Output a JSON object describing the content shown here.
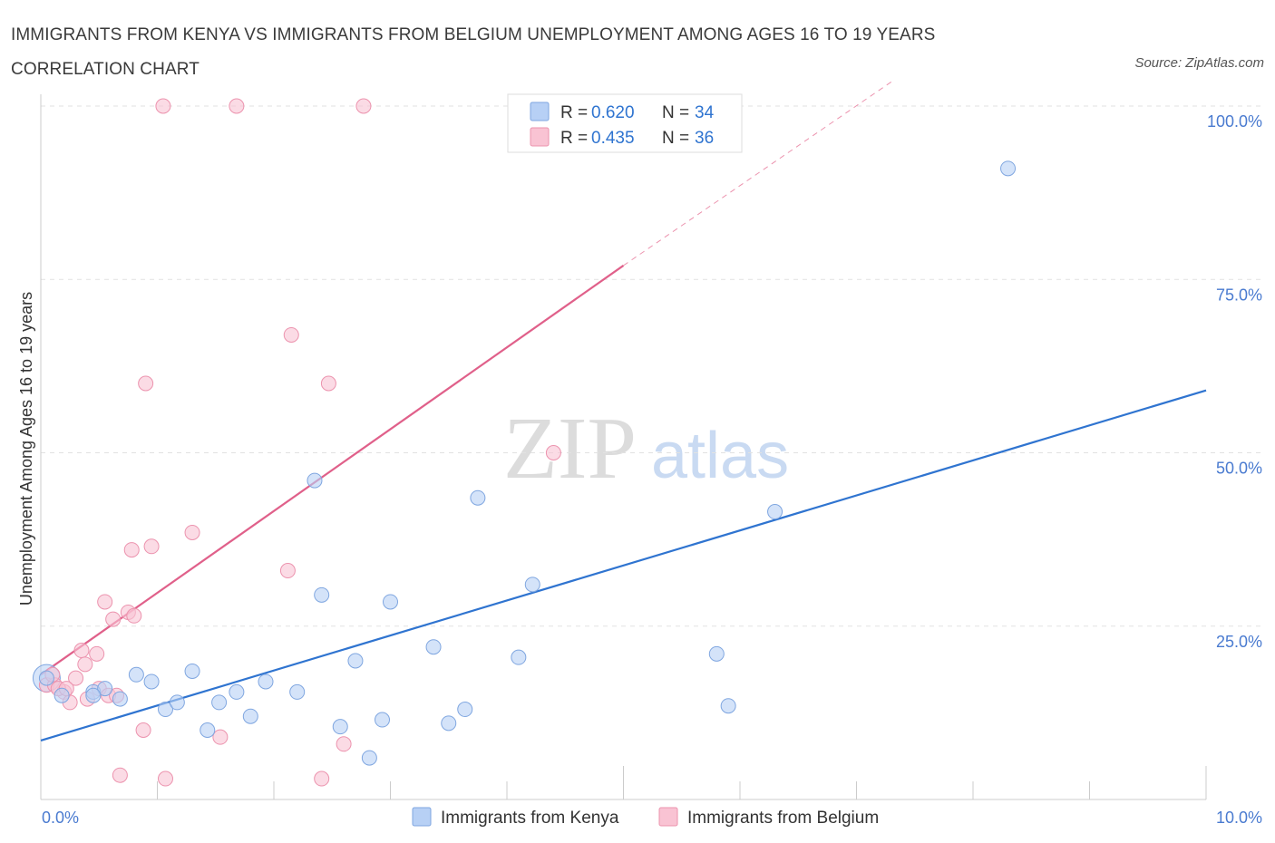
{
  "header": {
    "title": "IMMIGRANTS FROM KENYA VS IMMIGRANTS FROM BELGIUM UNEMPLOYMENT AMONG AGES 16 TO 19 YEARS CORRELATION CHART",
    "source": "Source: ZipAtlas.com"
  },
  "watermark": {
    "zip": "ZIP",
    "atlas": "atlas"
  },
  "colors": {
    "kenya_fill": "#b7d0f5",
    "kenya_stroke": "#7fa6e0",
    "kenya_line": "#2f74d0",
    "belgium_fill": "#f9c3d3",
    "belgium_stroke": "#ec93ae",
    "belgium_line": "#e0608a",
    "tick_blue": "#4a7bd0"
  },
  "chart_data": {
    "type": "scatter",
    "title": "IMMIGRANTS FROM KENYA VS IMMIGRANTS FROM BELGIUM UNEMPLOYMENT AMONG AGES 16 TO 19 YEARS CORRELATION CHART",
    "xlabel": "",
    "ylabel": "Unemployment Among Ages 16 to 19 years",
    "xlim": [
      0,
      10
    ],
    "ylim": [
      0,
      100
    ],
    "x_tick_labels": [
      "0.0%",
      "10.0%"
    ],
    "y_tick_labels": [
      "100.0%",
      "75.0%",
      "50.0%",
      "25.0%"
    ],
    "y_ticks": [
      100,
      75,
      50,
      25
    ],
    "legend": [
      {
        "label_r": "R = ",
        "r": "0.620",
        "label_n": "N = ",
        "n": "34"
      },
      {
        "label_r": "R = ",
        "r": "0.435",
        "label_n": "N = ",
        "n": "36"
      }
    ],
    "series": [
      {
        "name": "Immigrants from Kenya",
        "points": [
          [
            0.05,
            17.5
          ],
          [
            0.18,
            15.0
          ],
          [
            0.45,
            15.5
          ],
          [
            0.55,
            16.0
          ],
          [
            0.45,
            15.0
          ],
          [
            0.68,
            14.5
          ],
          [
            0.82,
            18.0
          ],
          [
            0.95,
            17.0
          ],
          [
            1.07,
            13.0
          ],
          [
            1.17,
            14.0
          ],
          [
            1.3,
            18.5
          ],
          [
            1.43,
            10.0
          ],
          [
            1.53,
            14.0
          ],
          [
            1.68,
            15.5
          ],
          [
            1.8,
            12.0
          ],
          [
            1.93,
            17.0
          ],
          [
            2.2,
            15.5
          ],
          [
            2.35,
            46.0
          ],
          [
            2.41,
            29.5
          ],
          [
            2.57,
            10.5
          ],
          [
            2.7,
            20.0
          ],
          [
            2.93,
            11.5
          ],
          [
            2.82,
            6.0
          ],
          [
            3.0,
            28.5
          ],
          [
            3.37,
            22.0
          ],
          [
            3.5,
            11.0
          ],
          [
            3.64,
            13.0
          ],
          [
            3.75,
            43.5
          ],
          [
            4.1,
            20.5
          ],
          [
            4.22,
            31.0
          ],
          [
            5.8,
            21.0
          ],
          [
            5.9,
            13.5
          ],
          [
            6.3,
            41.5
          ],
          [
            8.3,
            91.0
          ]
        ],
        "trend": [
          [
            0,
            8.5
          ],
          [
            10,
            59.0
          ]
        ]
      },
      {
        "name": "Immigrants from Belgium",
        "points": [
          [
            0.05,
            16.5
          ],
          [
            0.12,
            16.5
          ],
          [
            0.2,
            15.5
          ],
          [
            0.25,
            14.0
          ],
          [
            0.3,
            17.5
          ],
          [
            0.35,
            21.5
          ],
          [
            0.38,
            19.5
          ],
          [
            0.4,
            14.5
          ],
          [
            0.48,
            21.0
          ],
          [
            0.5,
            16.0
          ],
          [
            0.55,
            28.5
          ],
          [
            0.58,
            15.0
          ],
          [
            0.62,
            26.0
          ],
          [
            0.65,
            15.0
          ],
          [
            0.68,
            3.5
          ],
          [
            0.75,
            27.0
          ],
          [
            0.78,
            36.0
          ],
          [
            0.8,
            26.5
          ],
          [
            0.88,
            10.0
          ],
          [
            0.9,
            60.0
          ],
          [
            0.95,
            36.5
          ],
          [
            1.05,
            100.0
          ],
          [
            1.07,
            3.0
          ],
          [
            1.3,
            38.5
          ],
          [
            1.54,
            9.0
          ],
          [
            1.68,
            100.0
          ],
          [
            2.12,
            33.0
          ],
          [
            2.15,
            67.0
          ],
          [
            2.41,
            3.0
          ],
          [
            2.47,
            60.0
          ],
          [
            2.6,
            8.0
          ],
          [
            2.77,
            100.0
          ],
          [
            4.4,
            50.0
          ],
          [
            0.1,
            18.0
          ],
          [
            0.15,
            16.0
          ],
          [
            0.22,
            16.0
          ]
        ],
        "trend": [
          [
            0,
            18.0
          ],
          [
            5.0,
            77.0
          ]
        ],
        "trend_dashed": [
          [
            5.0,
            77.0
          ],
          [
            7.3,
            103.5
          ]
        ]
      }
    ],
    "large_point": {
      "series": "Immigrants from Kenya",
      "x": 0.05,
      "y": 17.5
    }
  }
}
